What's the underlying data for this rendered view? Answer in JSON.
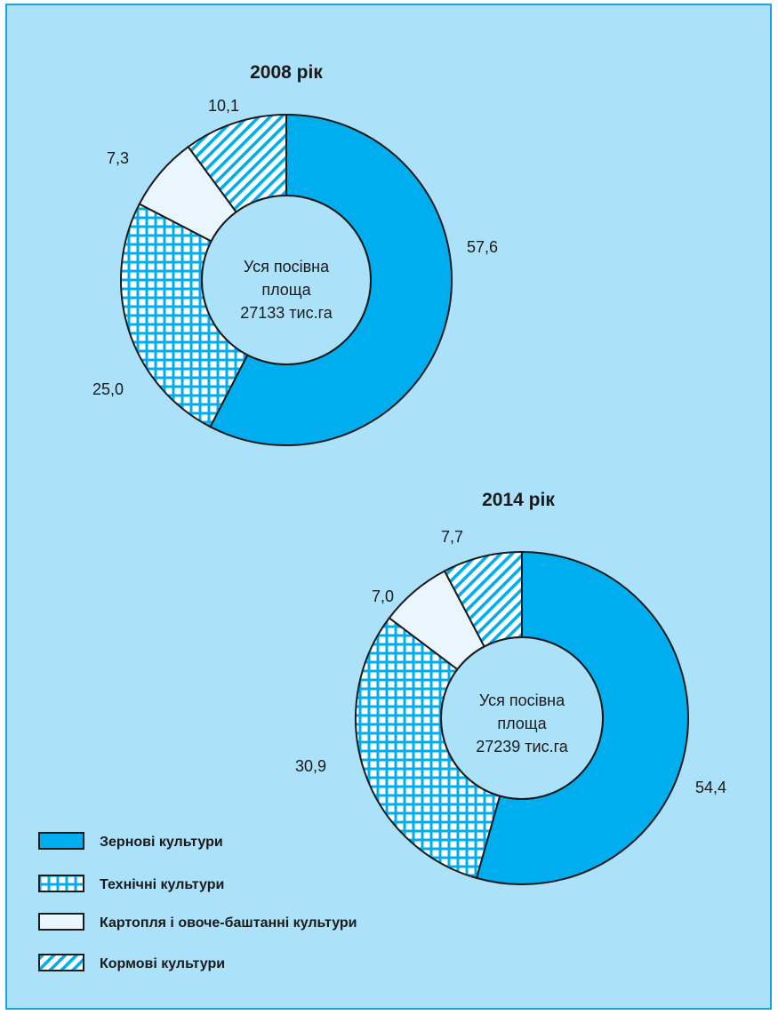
{
  "colors": {
    "background": "#ace1fa",
    "grain": "#00aeef",
    "white": "#ffffff",
    "light": "#eaf6fd",
    "stroke": "#1a1a1a",
    "hatch": "#00aeef"
  },
  "legend": [
    {
      "key": "grain",
      "label": "Зернові культури"
    },
    {
      "key": "industrial",
      "label": "Технічні культури"
    },
    {
      "key": "potato",
      "label": "Картопля і овоче-баштанні культури"
    },
    {
      "key": "fodder",
      "label": "Кормові культури"
    }
  ],
  "chart_data": [
    {
      "type": "pie",
      "title": "2008 рік",
      "center_text": [
        "Уся посівна",
        "площа",
        "27133 тис.га"
      ],
      "slices": [
        {
          "key": "grain",
          "value": 57.6,
          "label": "57,6"
        },
        {
          "key": "industrial",
          "value": 25.0,
          "label": "25,0"
        },
        {
          "key": "potato",
          "value": 7.3,
          "label": "7,3"
        },
        {
          "key": "fodder",
          "value": 10.1,
          "label": "10,1"
        }
      ]
    },
    {
      "type": "pie",
      "title": "2014 рік",
      "center_text": [
        "Уся посівна",
        "площа",
        "27239 тис.га"
      ],
      "slices": [
        {
          "key": "grain",
          "value": 54.4,
          "label": "54,4"
        },
        {
          "key": "industrial",
          "value": 30.9,
          "label": "30,9"
        },
        {
          "key": "potato",
          "value": 7.0,
          "label": "7,0"
        },
        {
          "key": "fodder",
          "value": 7.7,
          "label": "7,7"
        }
      ]
    }
  ]
}
